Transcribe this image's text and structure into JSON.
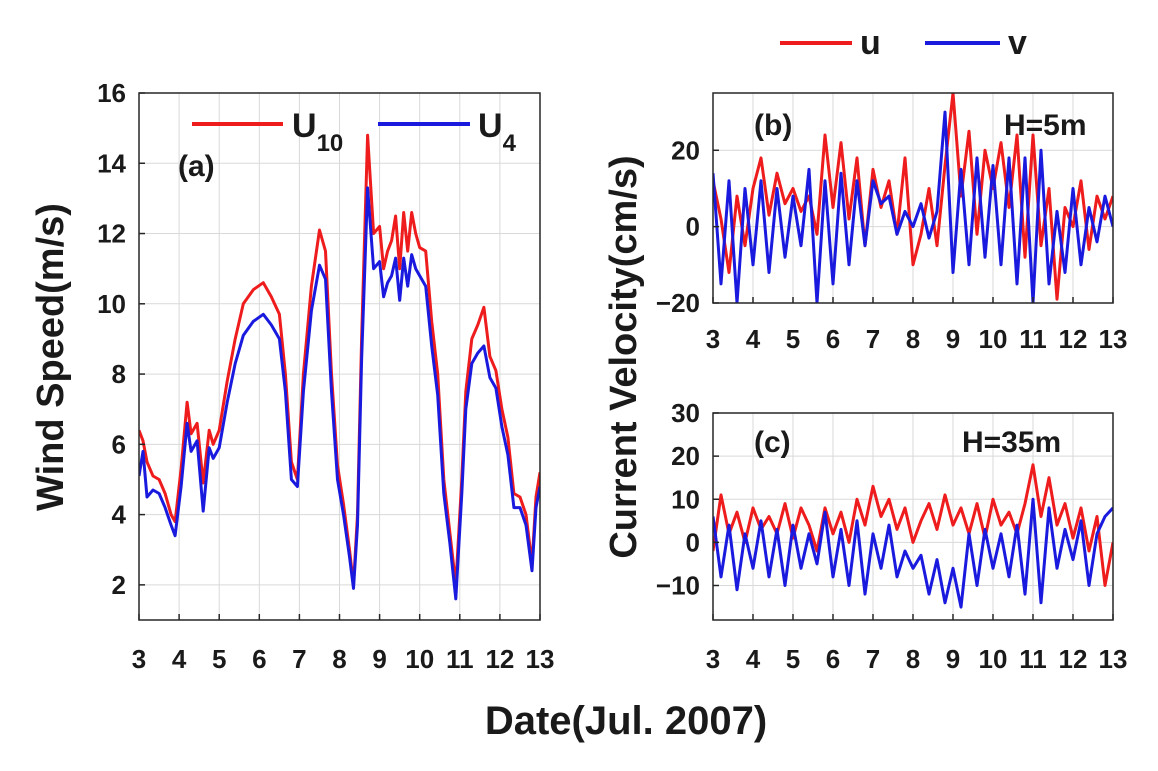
{
  "figure": {
    "xlabel": "Date(Jul. 2007)",
    "top_legend": [
      {
        "label": "u",
        "color": "#ee1c1c"
      },
      {
        "label": "v",
        "color": "#1a1adf"
      }
    ]
  },
  "chart_data": [
    {
      "type": "line",
      "panel_label": "(a)",
      "ylabel": "Wind Speed(m/s)",
      "xlim": [
        3,
        13
      ],
      "ylim": [
        1,
        16
      ],
      "xticks": [
        3,
        4,
        5,
        6,
        7,
        8,
        9,
        10,
        11,
        12,
        13
      ],
      "xtick_labels": [
        "3",
        "4",
        "5",
        "6",
        "7",
        "8",
        "9",
        "10",
        "11",
        "12",
        "13"
      ],
      "yticks": [
        2,
        4,
        6,
        8,
        10,
        12,
        14,
        16
      ],
      "ytick_labels": [
        "2",
        "4",
        "6",
        "8",
        "10",
        "12",
        "14",
        "16"
      ],
      "grid": true,
      "legend": [
        {
          "label": "U",
          "sub": "10",
          "color": "#ee1c1c"
        },
        {
          "label": "U",
          "sub": "4",
          "color": "#1a1adf"
        }
      ],
      "series": [
        {
          "name": "U10",
          "color": "#ee1c1c",
          "x": [
            3.0,
            3.1,
            3.2,
            3.35,
            3.5,
            3.65,
            3.8,
            3.9,
            4.05,
            4.2,
            4.3,
            4.45,
            4.6,
            4.75,
            4.85,
            5.0,
            5.2,
            5.4,
            5.6,
            5.85,
            6.1,
            6.3,
            6.5,
            6.65,
            6.8,
            6.95,
            7.1,
            7.3,
            7.5,
            7.65,
            7.8,
            7.95,
            8.1,
            8.25,
            8.35,
            8.45,
            8.55,
            8.7,
            8.85,
            9.0,
            9.1,
            9.2,
            9.3,
            9.4,
            9.5,
            9.6,
            9.7,
            9.8,
            9.9,
            10.0,
            10.15,
            10.3,
            10.45,
            10.6,
            10.75,
            10.9,
            11.05,
            11.15,
            11.3,
            11.45,
            11.6,
            11.75,
            11.9,
            12.05,
            12.2,
            12.35,
            12.5,
            12.65,
            12.8,
            12.9,
            13.0
          ],
          "y": [
            6.4,
            6.1,
            5.5,
            5.1,
            5.0,
            4.6,
            4.0,
            3.8,
            5.3,
            7.2,
            6.3,
            6.6,
            4.9,
            6.4,
            6.0,
            6.4,
            7.8,
            9.0,
            10.0,
            10.4,
            10.6,
            10.2,
            9.7,
            8.0,
            5.5,
            5.0,
            8.0,
            10.5,
            12.1,
            11.5,
            8.0,
            5.4,
            4.3,
            3.0,
            2.0,
            4.0,
            9.0,
            14.8,
            12.0,
            12.2,
            11.0,
            11.5,
            11.8,
            12.5,
            11.0,
            12.6,
            11.5,
            12.6,
            12.0,
            11.6,
            11.5,
            9.5,
            8.0,
            5.0,
            3.5,
            2.0,
            5.0,
            7.5,
            9.0,
            9.4,
            9.9,
            8.5,
            8.1,
            7.0,
            6.2,
            4.6,
            4.5,
            4.0,
            2.6,
            4.5,
            5.2
          ]
        },
        {
          "name": "U4",
          "color": "#1a1adf",
          "x": [
            3.0,
            3.1,
            3.2,
            3.35,
            3.5,
            3.65,
            3.8,
            3.9,
            4.05,
            4.2,
            4.3,
            4.45,
            4.6,
            4.75,
            4.85,
            5.0,
            5.2,
            5.4,
            5.6,
            5.85,
            6.1,
            6.3,
            6.5,
            6.65,
            6.8,
            6.95,
            7.1,
            7.3,
            7.5,
            7.65,
            7.8,
            7.95,
            8.1,
            8.25,
            8.35,
            8.45,
            8.55,
            8.7,
            8.85,
            9.0,
            9.1,
            9.2,
            9.3,
            9.4,
            9.5,
            9.6,
            9.7,
            9.8,
            9.9,
            10.0,
            10.15,
            10.3,
            10.45,
            10.6,
            10.75,
            10.9,
            11.05,
            11.15,
            11.3,
            11.45,
            11.6,
            11.75,
            11.9,
            12.05,
            12.2,
            12.35,
            12.5,
            12.65,
            12.8,
            12.9,
            13.0
          ],
          "y": [
            5.1,
            5.8,
            4.5,
            4.7,
            4.6,
            4.2,
            3.7,
            3.4,
            4.8,
            6.6,
            5.8,
            6.1,
            4.1,
            5.9,
            5.6,
            5.9,
            7.2,
            8.3,
            9.1,
            9.5,
            9.7,
            9.4,
            9.0,
            7.5,
            5.0,
            4.8,
            7.5,
            9.8,
            11.1,
            10.7,
            7.5,
            5.0,
            4.0,
            2.8,
            1.9,
            3.7,
            8.4,
            13.3,
            11.0,
            11.2,
            10.2,
            10.6,
            10.8,
            11.3,
            10.1,
            11.3,
            10.5,
            11.4,
            11.0,
            10.8,
            10.5,
            8.8,
            7.4,
            4.6,
            3.2,
            1.6,
            4.6,
            7.0,
            8.3,
            8.6,
            8.8,
            7.9,
            7.6,
            6.5,
            5.7,
            4.2,
            4.2,
            3.7,
            2.4,
            4.2,
            4.8
          ]
        }
      ]
    },
    {
      "type": "line",
      "panel_label": "(b)",
      "annotation": "H=5m",
      "ylabel": "Current Velocity(cm/s)",
      "xlim": [
        3,
        13
      ],
      "ylim": [
        -20,
        35
      ],
      "xticks": [
        3,
        4,
        5,
        6,
        7,
        8,
        9,
        10,
        11,
        12,
        13
      ],
      "xtick_labels": [
        "3",
        "4",
        "5",
        "6",
        "7",
        "8",
        "9",
        "10",
        "11",
        "12",
        "13"
      ],
      "yticks": [
        -20,
        0,
        20
      ],
      "ytick_labels": [
        "−20",
        "0",
        "20"
      ],
      "grid": true,
      "series": [
        {
          "name": "u",
          "color": "#ee1c1c",
          "x": [
            3.0,
            3.2,
            3.4,
            3.6,
            3.8,
            4.0,
            4.2,
            4.4,
            4.6,
            4.8,
            5.0,
            5.2,
            5.4,
            5.6,
            5.8,
            6.0,
            6.2,
            6.4,
            6.6,
            6.8,
            7.0,
            7.2,
            7.4,
            7.6,
            7.8,
            8.0,
            8.2,
            8.4,
            8.6,
            8.8,
            9.0,
            9.2,
            9.4,
            9.6,
            9.8,
            10.0,
            10.2,
            10.4,
            10.6,
            10.8,
            11.0,
            11.2,
            11.4,
            11.6,
            11.8,
            12.0,
            12.2,
            12.4,
            12.6,
            12.8,
            13.0
          ],
          "y": [
            12,
            2,
            -12,
            8,
            -5,
            10,
            18,
            3,
            14,
            6,
            10,
            4,
            8,
            -2,
            24,
            5,
            22,
            2,
            18,
            -5,
            15,
            5,
            12,
            -2,
            18,
            -10,
            -2,
            10,
            -5,
            16,
            35,
            8,
            25,
            -2,
            20,
            10,
            22,
            5,
            24,
            -8,
            24,
            -5,
            10,
            -19,
            5,
            0,
            12,
            -6,
            8,
            2,
            8
          ]
        },
        {
          "name": "v",
          "color": "#1a1adf",
          "x": [
            3.0,
            3.2,
            3.4,
            3.6,
            3.8,
            4.0,
            4.2,
            4.4,
            4.6,
            4.8,
            5.0,
            5.2,
            5.4,
            5.6,
            5.8,
            6.0,
            6.2,
            6.4,
            6.6,
            6.8,
            7.0,
            7.2,
            7.4,
            7.6,
            7.8,
            8.0,
            8.2,
            8.4,
            8.6,
            8.8,
            9.0,
            9.2,
            9.4,
            9.6,
            9.8,
            10.0,
            10.2,
            10.4,
            10.6,
            10.8,
            11.0,
            11.2,
            11.4,
            11.6,
            11.8,
            12.0,
            12.2,
            12.4,
            12.6,
            12.8,
            13.0
          ],
          "y": [
            14,
            -15,
            12,
            -20,
            10,
            -10,
            12,
            -12,
            10,
            -8,
            8,
            -5,
            15,
            -20,
            12,
            -15,
            14,
            -10,
            12,
            -5,
            12,
            6,
            8,
            -2,
            4,
            0,
            6,
            -3,
            4,
            30,
            -12,
            15,
            -10,
            18,
            -8,
            16,
            -10,
            18,
            -15,
            18,
            -20,
            20,
            -15,
            4,
            -12,
            10,
            -10,
            5,
            -4,
            8,
            0
          ]
        }
      ]
    },
    {
      "type": "line",
      "panel_label": "(c)",
      "annotation": "H=35m",
      "ylabel": "",
      "xlim": [
        3,
        13
      ],
      "ylim": [
        -18,
        30
      ],
      "xticks": [
        3,
        4,
        5,
        6,
        7,
        8,
        9,
        10,
        11,
        12,
        13
      ],
      "xtick_labels": [
        "3",
        "4",
        "5",
        "6",
        "7",
        "8",
        "9",
        "10",
        "11",
        "12",
        "13"
      ],
      "yticks": [
        -10,
        0,
        10,
        20,
        30
      ],
      "ytick_labels": [
        "−10",
        "0",
        "10",
        "20",
        "30"
      ],
      "grid": true,
      "series": [
        {
          "name": "u",
          "color": "#ee1c1c",
          "x": [
            3.0,
            3.2,
            3.4,
            3.6,
            3.8,
            4.0,
            4.2,
            4.4,
            4.6,
            4.8,
            5.0,
            5.2,
            5.4,
            5.6,
            5.8,
            6.0,
            6.2,
            6.4,
            6.6,
            6.8,
            7.0,
            7.2,
            7.4,
            7.6,
            7.8,
            8.0,
            8.2,
            8.4,
            8.6,
            8.8,
            9.0,
            9.2,
            9.4,
            9.6,
            9.8,
            10.0,
            10.2,
            10.4,
            10.6,
            10.8,
            11.0,
            11.2,
            11.4,
            11.6,
            11.8,
            12.0,
            12.2,
            12.4,
            12.6,
            12.8,
            13.0
          ],
          "y": [
            -2,
            11,
            2,
            7,
            0,
            8,
            3,
            6,
            2,
            9,
            1,
            8,
            4,
            -2,
            8,
            2,
            7,
            0,
            10,
            4,
            13,
            6,
            10,
            3,
            8,
            0,
            5,
            9,
            3,
            11,
            4,
            8,
            2,
            9,
            1,
            10,
            4,
            7,
            2,
            9,
            18,
            6,
            15,
            4,
            9,
            1,
            8,
            -2,
            6,
            -10,
            0
          ]
        },
        {
          "name": "v",
          "color": "#1a1adf",
          "x": [
            3.0,
            3.2,
            3.4,
            3.6,
            3.8,
            4.0,
            4.2,
            4.4,
            4.6,
            4.8,
            5.0,
            5.2,
            5.4,
            5.6,
            5.8,
            6.0,
            6.2,
            6.4,
            6.6,
            6.8,
            7.0,
            7.2,
            7.4,
            7.6,
            7.8,
            8.0,
            8.2,
            8.4,
            8.6,
            8.8,
            9.0,
            9.2,
            9.4,
            9.6,
            9.8,
            10.0,
            10.2,
            10.4,
            10.6,
            10.8,
            11.0,
            11.2,
            11.4,
            11.6,
            11.8,
            12.0,
            12.2,
            12.4,
            12.6,
            12.8,
            13.0
          ],
          "y": [
            6,
            -8,
            4,
            -11,
            2,
            -6,
            5,
            -8,
            3,
            -10,
            4,
            -6,
            2,
            -5,
            7,
            -8,
            3,
            -10,
            5,
            -12,
            2,
            -6,
            4,
            -8,
            -2,
            -6,
            -3,
            -12,
            -4,
            -14,
            -6,
            -15,
            2,
            -10,
            3,
            -6,
            2,
            -8,
            4,
            -12,
            10,
            -14,
            8,
            -6,
            3,
            -4,
            5,
            -10,
            2,
            6,
            8
          ]
        }
      ]
    }
  ]
}
